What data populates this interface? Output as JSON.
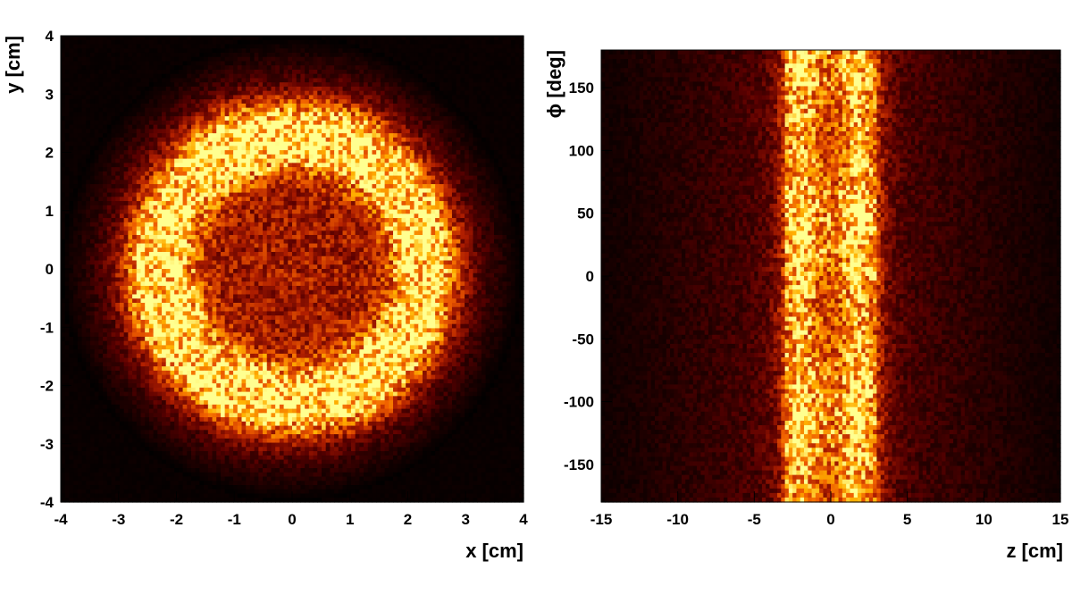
{
  "chart_data": [
    {
      "type": "heatmap",
      "title": "",
      "xlabel": "x [cm]",
      "ylabel": "y [cm]",
      "xlim": [
        -4,
        4
      ],
      "ylim": [
        -4,
        4
      ],
      "xticks": [
        "-4",
        "-3",
        "-2",
        "-1",
        "0",
        "1",
        "2",
        "3",
        "4"
      ],
      "yticks": [
        "-4",
        "-3",
        "-2",
        "-1",
        "0",
        "1",
        "2",
        "3",
        "4"
      ],
      "grid": false,
      "colormap": [
        "#000000",
        "#5a0000",
        "#b01e00",
        "#f06000",
        "#ffb000",
        "#ffff90"
      ],
      "distribution": {
        "shape": "ring",
        "ring_radius": 2.3,
        "ring_width": 0.55,
        "inner_level": 0.38,
        "outer_radius": 4.0,
        "hot_spots": [
          {
            "x": -1.0,
            "y": 2.15
          },
          {
            "x": 0.9,
            "y": 2.25
          },
          {
            "x": -2.1,
            "y": -0.5
          },
          {
            "x": -0.8,
            "y": -2.0
          },
          {
            "x": 1.0,
            "y": -1.9
          }
        ]
      }
    },
    {
      "type": "heatmap",
      "title": "",
      "xlabel": "z [cm]",
      "ylabel": "ϕ [deg]",
      "xlim": [
        -15,
        15
      ],
      "ylim": [
        -180,
        180
      ],
      "xticks": [
        "-15",
        "-10",
        "-5",
        "0",
        "5",
        "10",
        "15"
      ],
      "yticks": [
        "-150",
        "-100",
        "-50",
        "0",
        "50",
        "100",
        "150"
      ],
      "grid": false,
      "colormap": [
        "#000000",
        "#5a0000",
        "#b01e00",
        "#f06000",
        "#ffb000",
        "#ffff90"
      ],
      "distribution": {
        "shape": "band",
        "band_z_min": -3.0,
        "band_z_max": 3.0,
        "band_peaks_z": [
          -2.0,
          1.8
        ],
        "background_level": 0.18
      }
    }
  ]
}
